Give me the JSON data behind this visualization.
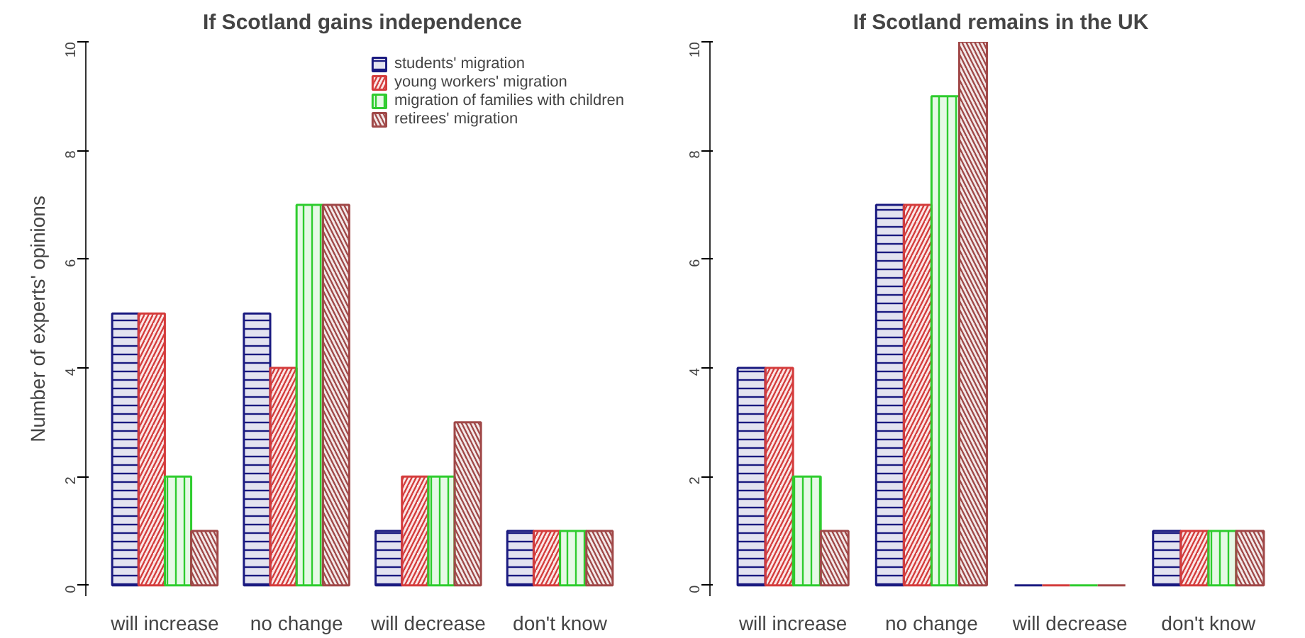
{
  "chart_data": [
    {
      "type": "bar",
      "title": "If Scotland gains independence",
      "ylabel": "Number of experts' opinions",
      "categories": [
        "will increase",
        "no change",
        "will decrease",
        "don't know"
      ],
      "ylim": [
        -0.2,
        10
      ],
      "yticks": [
        0,
        2,
        4,
        6,
        8,
        10
      ],
      "grid": false,
      "legend": "top right",
      "series": [
        {
          "name": "students' migration",
          "color": "#1a1a80",
          "values": [
            5,
            5,
            1,
            1
          ]
        },
        {
          "name": "young workers' migration",
          "color": "#d43c3c",
          "values": [
            5,
            4,
            2,
            1
          ]
        },
        {
          "name": "migration of families with children",
          "color": "#2ecc2e",
          "values": [
            2,
            7,
            2,
            1
          ]
        },
        {
          "name": "retirees' migration",
          "color": "#a04848",
          "values": [
            1,
            7,
            3,
            1
          ]
        }
      ]
    },
    {
      "type": "bar",
      "title": "If Scotland remains in the UK",
      "categories": [
        "will increase",
        "no change",
        "will decrease",
        "don't know"
      ],
      "ylim": [
        -0.2,
        10
      ],
      "yticks": [
        0,
        2,
        4,
        6,
        8,
        10
      ],
      "grid": false,
      "legend": false,
      "series": [
        {
          "color": "#1a1a80",
          "values": [
            4,
            7,
            0,
            1
          ]
        },
        {
          "color": "#d43c3c",
          "values": [
            4,
            7,
            0,
            1
          ]
        },
        {
          "color": "#2ecc2e",
          "values": [
            2,
            9,
            0,
            1
          ]
        },
        {
          "color": "#a04848",
          "values": [
            1,
            10,
            0,
            1
          ]
        }
      ]
    }
  ]
}
